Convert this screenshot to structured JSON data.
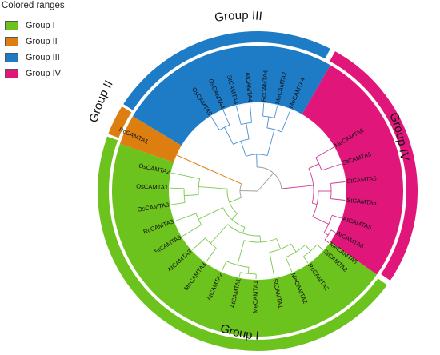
{
  "legend": {
    "title": "Colored ranges",
    "items": [
      {
        "label": "Group I",
        "color": "#6cc31e"
      },
      {
        "label": "Group II",
        "color": "#dc7f10"
      },
      {
        "label": "Group III",
        "color": "#1e7bc6"
      },
      {
        "label": "Group IV",
        "color": "#e0167a"
      }
    ]
  },
  "groups": [
    {
      "label": "Group I",
      "color": "#6cc31e",
      "branch_color": "#7bc850"
    },
    {
      "label": "Group II",
      "color": "#dc7f10",
      "branch_color": "#dc7f10"
    },
    {
      "label": "Group III",
      "color": "#1e7bc6",
      "branch_color": "#4b8fd0"
    },
    {
      "label": "Group IV",
      "color": "#e0167a",
      "branch_color": "#cc3c97"
    }
  ],
  "leaves": [
    {
      "label": "OsCAMTA2",
      "group": 0
    },
    {
      "label": "OsCAMTA1",
      "group": 0
    },
    {
      "label": "OsCAMTA3",
      "group": 0
    },
    {
      "label": "RcCAMTA3",
      "group": 0
    },
    {
      "label": "StCAMTA3",
      "group": 0
    },
    {
      "label": "AtCAMTA3",
      "group": 0
    },
    {
      "label": "MeCAMTA3",
      "group": 0
    },
    {
      "label": "AtCAMTA2",
      "group": 0
    },
    {
      "label": "AtCAMTA1",
      "group": 0
    },
    {
      "label": "MeCAMTA1",
      "group": 0
    },
    {
      "label": "StCAMTA1",
      "group": 0
    },
    {
      "label": "MeCAMTA2",
      "group": 0
    },
    {
      "label": "RcCAMTA2",
      "group": 0
    },
    {
      "label": "StCAMTA2",
      "group": 0
    },
    {
      "label": "MeCAMTA6",
      "group": 3
    },
    {
      "label": "StCAMTA5",
      "group": 3
    },
    {
      "label": "StCAMTA6",
      "group": 3
    },
    {
      "label": "StCAMTA5",
      "group": 3
    },
    {
      "label": "AtCAMTA5",
      "group": 3
    },
    {
      "label": "AtCAMTA6",
      "group": 3
    },
    {
      "label": "MeCAMTA5",
      "group": 3
    },
    {
      "label": "MeCAMTA4",
      "group": 2
    },
    {
      "label": "MeCAMTA2",
      "group": 2
    },
    {
      "label": "RcCAMTA4",
      "group": 2
    },
    {
      "label": "AtCAMTA4",
      "group": 2
    },
    {
      "label": "StCAMTA4",
      "group": 2
    },
    {
      "label": "OsCAMTA4",
      "group": 2
    },
    {
      "label": "OsCAMTA5",
      "group": 2
    },
    {
      "label": "RcCAMTA1",
      "group": 1
    }
  ]
}
